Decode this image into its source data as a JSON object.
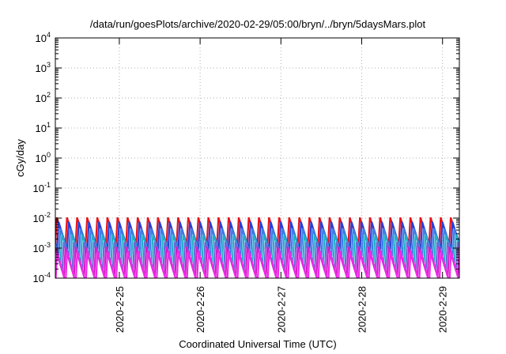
{
  "chart_data": {
    "type": "line",
    "title": "/data/run/goesPlots/archive/2020-02-29/05:00/bryn/../bryn/5daysMars.plot",
    "xlabel": "Coordinated Universal Time (UTC)",
    "ylabel": "cGy/day",
    "yscale": "log",
    "ylim": [
      0.0001,
      10000
    ],
    "y_ticks": [
      {
        "base": "10",
        "exp": "-4",
        "value": 0.0001
      },
      {
        "base": "10",
        "exp": "-3",
        "value": 0.001
      },
      {
        "base": "10",
        "exp": "-2",
        "value": 0.01
      },
      {
        "base": "10",
        "exp": "-1",
        "value": 0.1
      },
      {
        "base": "10",
        "exp": "0",
        "value": 1
      },
      {
        "base": "10",
        "exp": "1",
        "value": 10
      },
      {
        "base": "10",
        "exp": "2",
        "value": 100
      },
      {
        "base": "10",
        "exp": "3",
        "value": 1000
      },
      {
        "base": "10",
        "exp": "4",
        "value": 10000
      }
    ],
    "xlim": [
      "2020-02-24T05:00",
      "2020-02-29T05:00"
    ],
    "x_ticks": [
      {
        "label": "2020-2-25",
        "date": "2020-02-25T00:00"
      },
      {
        "label": "2020-2-26",
        "date": "2020-02-26T00:00"
      },
      {
        "label": "2020-2-27",
        "date": "2020-02-27T00:00"
      },
      {
        "label": "2020-2-28",
        "date": "2020-02-28T00:00"
      },
      {
        "label": "2020-2-29",
        "date": "2020-02-29T00:00"
      }
    ],
    "grid": true,
    "legend": "none",
    "sawtooth_period_hours": 3,
    "series": [
      {
        "color": "#e8151b",
        "peak": 0.0105,
        "trough": 0.00125
      },
      {
        "color": "#2a3fd4",
        "peak": 0.0075,
        "trough": 0.0009
      },
      {
        "color": "#3a7fe8",
        "peak": 0.0045,
        "trough": 0.00055
      },
      {
        "color": "#1fb0c8",
        "peak": 0.0028,
        "trough": 0.00032
      },
      {
        "color": "#6a6ad8",
        "peak": 0.0016,
        "trough": 0.00017
      },
      {
        "color": "#d21ec8",
        "peak": 0.0011,
        "trough": 0.00011
      },
      {
        "color": "#f028e8",
        "peak": 0.0008,
        "trough": 7e-05
      }
    ]
  }
}
